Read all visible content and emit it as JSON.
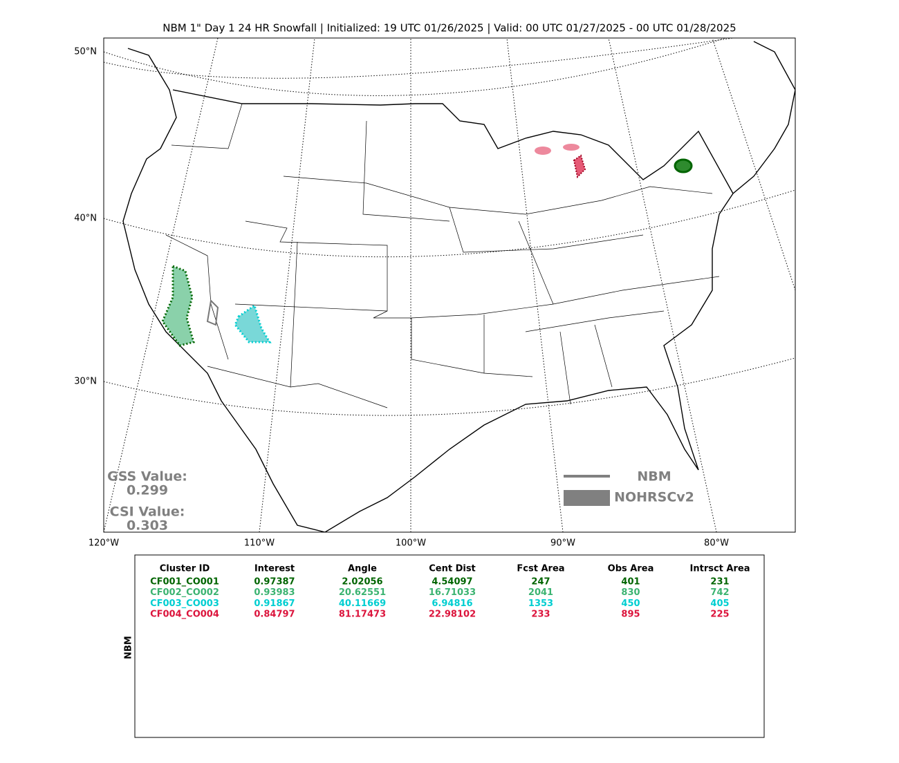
{
  "title": "NBM 1\" Day 1 24 HR Snowfall | Initialized: 19 UTC 01/26/2025 | Valid: 00 UTC 01/27/2025 - 00 UTC 01/28/2025",
  "lat_labels": [
    "50°N",
    "40°N",
    "30°N"
  ],
  "lon_labels": [
    "120°W",
    "110°W",
    "100°W",
    "90°W",
    "80°W"
  ],
  "scores": {
    "gss_label": "GSS Value:",
    "gss_value": "0.299",
    "csi_label": "CSI Value:",
    "csi_value": "0.303"
  },
  "legend": {
    "forecast": "NBM",
    "observed": "NOHRSCv2"
  },
  "table": {
    "side_label": "NBM",
    "headers": [
      "Cluster ID",
      "Interest",
      "Angle",
      "Cent Dist",
      "Fcst Area",
      "Obs Area",
      "Intrsct Area"
    ],
    "rows": [
      {
        "color": "#006400",
        "cells": [
          "CF001_CO001",
          0.97387,
          2.02056,
          4.54097,
          247,
          401,
          231
        ]
      },
      {
        "color": "#3cb371",
        "cells": [
          "CF002_CO002",
          0.93983,
          20.62551,
          16.71033,
          2041,
          830,
          742
        ]
      },
      {
        "color": "#00ced1",
        "cells": [
          "CF003_CO003",
          0.91867,
          40.11669,
          6.94816,
          1353,
          450,
          405
        ]
      },
      {
        "color": "#dc143c",
        "cells": [
          "CF004_CO004",
          0.84797,
          81.17473,
          22.98102,
          233,
          895,
          225
        ]
      }
    ]
  }
}
